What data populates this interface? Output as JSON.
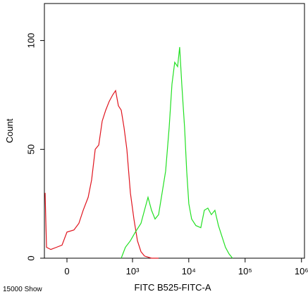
{
  "chart_data": {
    "type": "line",
    "x_label": "FITC B525-FITC-A",
    "y_label": "Count",
    "annotation": "15000 Show",
    "xscale": "biexponential",
    "xlim": [
      -146,
      1130000
    ],
    "ylim": [
      0,
      117
    ],
    "xticks": [
      0,
      {
        "value": 1000,
        "label": "10³"
      },
      {
        "value": 10000,
        "label": "10⁴"
      },
      {
        "value": 100000,
        "label": "10⁵"
      },
      {
        "value": 1000000,
        "label": "10⁶"
      }
    ],
    "yticks": [
      0,
      50,
      100
    ],
    "series": [
      {
        "name": "red",
        "color": "#e0141e",
        "x": [
          -140,
          -129,
          -98,
          -61,
          -28,
          0,
          40,
          70,
          98,
          135,
          164,
          197,
          234,
          275,
          322,
          375,
          437,
          494,
          556,
          625,
          704,
          791,
          915,
          1058,
          1224,
          1414,
          1635,
          2182,
          2912
        ],
        "values": [
          30,
          5,
          4,
          5,
          6,
          12,
          13,
          16,
          22,
          28,
          36,
          50,
          52,
          63,
          68,
          72,
          75,
          77,
          70,
          68,
          60,
          50,
          30,
          18,
          8,
          3,
          1,
          0,
          0
        ]
      },
      {
        "name": "green",
        "color": "#22e022",
        "x": [
          625,
          745,
          915,
          1122,
          1414,
          1635,
          1888,
          2182,
          2520,
          2912,
          3363,
          3883,
          4485,
          5028,
          5640,
          6330,
          6900,
          7520,
          8440,
          9200,
          10030,
          11260,
          13380,
          16370,
          18900,
          21800,
          25200,
          29100,
          33600,
          38800,
          44800,
          51700,
          59700
        ],
        "values": [
          0,
          5,
          8,
          12,
          16,
          22,
          28,
          22,
          18,
          20,
          30,
          40,
          60,
          80,
          90,
          88,
          97,
          80,
          60,
          40,
          25,
          18,
          15,
          14,
          22,
          23,
          20,
          22,
          15,
          10,
          5,
          2,
          0
        ]
      }
    ]
  }
}
